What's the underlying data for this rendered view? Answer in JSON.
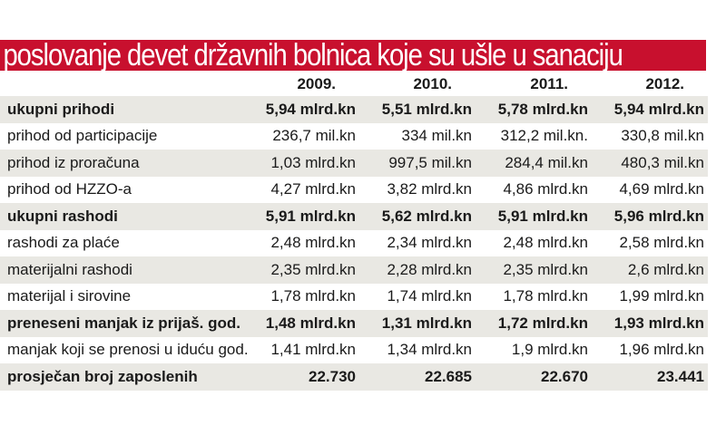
{
  "title": "poslovanje devet državnih bolnica koje su ušle u sanaciju",
  "colors": {
    "title_bg": "#c8102e",
    "row_shade": "#e9e8e3"
  },
  "chart_data": {
    "type": "table",
    "title": "poslovanje devet državnih bolnica koje su ušle u sanaciju",
    "columns": [
      "2009.",
      "2010.",
      "2011.",
      "2012."
    ],
    "rows": [
      {
        "label": "ukupni prihodi",
        "bold": true,
        "values": [
          "5,94 mlrd.kn",
          "5,51 mlrd.kn",
          "5,78 mlrd.kn",
          "5,94 mlrd.kn"
        ]
      },
      {
        "label": "prihod od participacije",
        "bold": false,
        "values": [
          "236,7 mil.kn",
          "334 mil.kn",
          "312,2 mil.kn.",
          "330,8 mil.kn"
        ]
      },
      {
        "label": "prihod iz proračuna",
        "bold": false,
        "values": [
          "1,03 mlrd.kn",
          "997,5 mil.kn",
          "284,4 mil.kn",
          "480,3 mil.kn"
        ]
      },
      {
        "label": "prihod od HZZO-a",
        "bold": false,
        "values": [
          "4,27 mlrd.kn",
          "3,82 mlrd.kn",
          "4,86 mlrd.kn",
          "4,69 mlrd.kn"
        ]
      },
      {
        "label": "ukupni rashodi",
        "bold": true,
        "values": [
          "5,91 mlrd.kn",
          "5,62 mlrd.kn",
          "5,91 mlrd.kn",
          "5,96 mlrd.kn"
        ]
      },
      {
        "label": "rashodi za plaće",
        "bold": false,
        "values": [
          "2,48 mlrd.kn",
          "2,34 mlrd.kn",
          "2,48 mlrd.kn",
          "2,58 mlrd.kn"
        ]
      },
      {
        "label": "materijalni rashodi",
        "bold": false,
        "values": [
          "2,35 mlrd.kn",
          "2,28 mlrd.kn",
          "2,35 mlrd.kn",
          "2,6 mlrd.kn"
        ]
      },
      {
        "label": "materijal i sirovine",
        "bold": false,
        "values": [
          "1,78 mlrd.kn",
          "1,74 mlrd.kn",
          "1,78 mlrd.kn",
          "1,99 mlrd.kn"
        ]
      },
      {
        "label": "preneseni manjak iz prijaš. god.",
        "bold": true,
        "values": [
          "1,48 mlrd.kn",
          "1,31 mlrd.kn",
          "1,72 mlrd.kn",
          "1,93 mlrd.kn"
        ]
      },
      {
        "label": "manjak koji se prenosi u iduću god.",
        "bold": false,
        "values": [
          "1,41 mlrd.kn",
          "1,34 mlrd.kn",
          "1,9 mlrd.kn",
          "1,96 mlrd.kn"
        ]
      },
      {
        "label": "prosječan broj zaposlenih",
        "bold": true,
        "values": [
          "22.730",
          "22.685",
          "22.670",
          "23.441"
        ]
      }
    ]
  }
}
